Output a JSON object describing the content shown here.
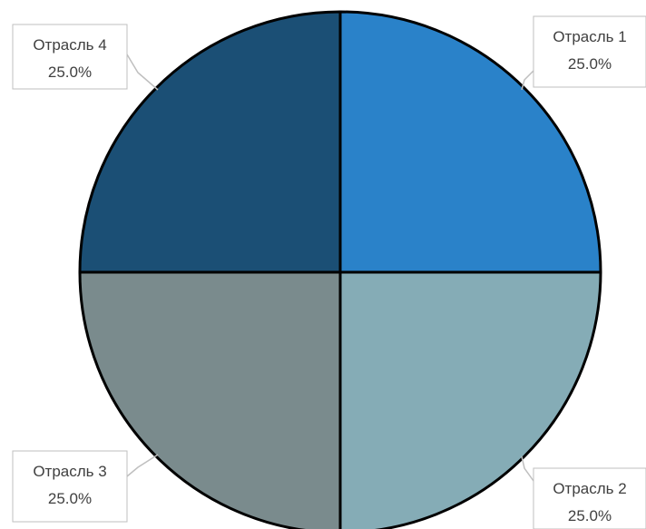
{
  "chart_data": {
    "type": "pie",
    "title": "",
    "slices": [
      {
        "name": "Отрасль 1",
        "value": 25,
        "percent_label": "25.0%",
        "color": "#2a82c9"
      },
      {
        "name": "Отрасль 2",
        "value": 25,
        "percent_label": "25.0%",
        "color": "#85acb6"
      },
      {
        "name": "Отрасль 3",
        "value": 25,
        "percent_label": "25.0%",
        "color": "#7a8b8d"
      },
      {
        "name": "Отрасль 4",
        "value": 25,
        "percent_label": "25.0%",
        "color": "#1b4f75"
      }
    ],
    "legend": "none",
    "data_labels": "outside-callout"
  }
}
